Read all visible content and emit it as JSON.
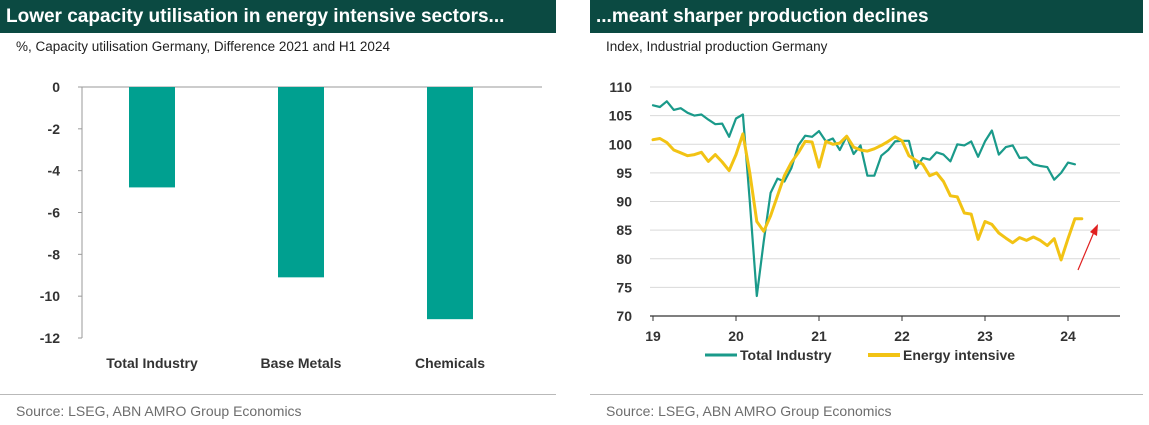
{
  "charts": [
    {
      "title": "Lower capacity utilisation in energy intensive sectors...",
      "subtitle": "%, Capacity utilisation Germany, Difference 2021 and H1 2024",
      "source": "Source: LSEG, ABN AMRO Group Economics",
      "chart_data": {
        "type": "bar",
        "categories": [
          "Total Industry",
          "Base Metals",
          "Chemicals"
        ],
        "values": [
          -4.8,
          -9.1,
          -11.1
        ],
        "ylim": [
          -12,
          0
        ],
        "yticks": [
          0,
          -2,
          -4,
          -6,
          -8,
          -10,
          -12
        ],
        "ytick_labels": [
          "0",
          "-2",
          "-4",
          "-6",
          "-8",
          "-10",
          "-12"
        ],
        "color": "#00a090",
        "grid": false
      }
    },
    {
      "title": "...meant sharper production declines",
      "subtitle": "Index, Industrial production Germany",
      "source": "Source: LSEG, ABN AMRO Group Economics",
      "chart_data": {
        "type": "line",
        "x_start": "2019-01",
        "x_step": "month",
        "ylim": [
          70,
          110
        ],
        "yticks": [
          70,
          75,
          80,
          85,
          90,
          95,
          100,
          105,
          110
        ],
        "ytick_labels": [
          "70",
          "75",
          "80",
          "85",
          "90",
          "95",
          "100",
          "105",
          "110"
        ],
        "xticks": [
          0,
          12,
          24,
          36,
          48,
          60
        ],
        "xtick_labels": [
          "19",
          "20",
          "21",
          "22",
          "23",
          "24"
        ],
        "grid": true,
        "legend_position": "bottom",
        "series": [
          {
            "name": "Total Industry",
            "color": "#1a9a8a",
            "values": [
              106.8,
              106.5,
              107.5,
              106.0,
              106.3,
              105.5,
              105.0,
              105.2,
              104.3,
              103.5,
              103.6,
              101.3,
              104.5,
              105.2,
              90.0,
              73.5,
              83.0,
              91.5,
              94.0,
              93.5,
              95.8,
              99.8,
              101.5,
              101.3,
              102.3,
              100.5,
              101.0,
              99.0,
              101.4,
              98.3,
              99.8,
              94.5,
              94.5,
              98.0,
              99.0,
              100.5,
              100.6,
              100.6,
              95.8,
              97.6,
              97.3,
              98.6,
              98.2,
              97.0,
              100.0,
              99.8,
              100.5,
              97.8,
              100.5,
              102.4,
              98.2,
              99.5,
              99.8,
              97.6,
              97.7,
              96.5,
              96.2,
              96.0,
              93.8,
              95.0,
              96.8,
              96.5
            ]
          },
          {
            "name": "Energy intensive",
            "color": "#f2c314",
            "values": [
              100.8,
              101.0,
              100.3,
              99.0,
              98.5,
              98.0,
              98.2,
              98.6,
              97.0,
              98.2,
              96.9,
              95.4,
              98.2,
              101.8,
              95.0,
              86.5,
              84.8,
              87.5,
              91.0,
              94.5,
              96.8,
              98.5,
              100.5,
              100.4,
              96.0,
              100.5,
              100.0,
              100.2,
              101.4,
              99.5,
              99.0,
              98.8,
              99.2,
              99.8,
              100.5,
              101.3,
              100.6,
              98.0,
              97.2,
              96.5,
              94.5,
              95.0,
              93.5,
              91.0,
              90.8,
              88.0,
              87.8,
              83.4,
              86.5,
              86.0,
              84.5,
              83.6,
              82.8,
              83.7,
              83.2,
              83.8,
              83.2,
              82.3,
              83.5,
              79.8,
              83.5,
              87.0,
              87.0
            ]
          }
        ]
      }
    }
  ]
}
